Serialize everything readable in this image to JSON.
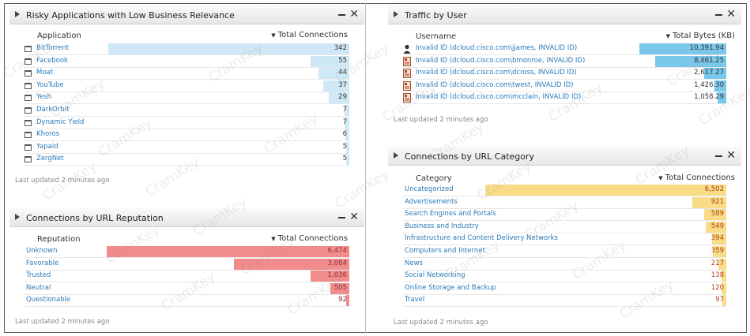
{
  "colors": {
    "risky_bar": "#cfe8f6",
    "reputation_bar": "#f28b8b",
    "traffic_bar": "#79c8ec",
    "category_bar": "#f8dc86"
  },
  "risky": {
    "title": "Risky Applications with Low Business Relevance",
    "col_left": "Application",
    "col_right": "Total Connections",
    "footer": "Last updated 2 minutes ago",
    "max": 342,
    "rows": [
      {
        "label": "BitTorrent",
        "value": 342
      },
      {
        "label": "Facebook",
        "value": 55
      },
      {
        "label": "Moat",
        "value": 44
      },
      {
        "label": "YouTube",
        "value": 37
      },
      {
        "label": "Yesh",
        "value": 29
      },
      {
        "label": "DarkOrbit",
        "value": 7
      },
      {
        "label": "Dynamic Yield",
        "value": 7
      },
      {
        "label": "Khoros",
        "value": 6
      },
      {
        "label": "Yapaid",
        "value": 5
      },
      {
        "label": "ZergNet",
        "value": 5
      }
    ]
  },
  "reputation": {
    "title": "Connections by URL Reputation",
    "col_left": "Reputation",
    "col_right": "Total Connections",
    "footer": "Last updated 2 minutes ago",
    "max": 6474,
    "rows": [
      {
        "label": "Unknown",
        "value": 6474,
        "text": "6,474"
      },
      {
        "label": "Favorable",
        "value": 3084,
        "text": "3,084"
      },
      {
        "label": "Trusted",
        "value": 1036,
        "text": "1,036"
      },
      {
        "label": "Neutral",
        "value": 505,
        "text": "505"
      },
      {
        "label": "Questionable",
        "value": 92,
        "text": "92"
      }
    ]
  },
  "traffic": {
    "title": "Traffic by User",
    "col_left": "Username",
    "col_right": "Total Bytes (KB)",
    "footer": "Last updated 2 minutes ago",
    "max": 10391.94,
    "rows": [
      {
        "label": "Invalid ID (dcloud.cisco.com\\jjames, INVALID ID)",
        "value": 10391.94,
        "text": "10,391.94"
      },
      {
        "label": "Invalid ID (dcloud.cisco.com\\bmonroe, INVALID ID)",
        "value": 8461.25,
        "text": "8,461.25"
      },
      {
        "label": "Invalid ID (dcloud.cisco.com\\dcross, INVALID ID)",
        "value": 2617.27,
        "text": "2,617.27"
      },
      {
        "label": "Invalid ID (dcloud.cisco.com\\twest, INVALID ID)",
        "value": 1426.3,
        "text": "1,426.30"
      },
      {
        "label": "Invalid ID (dcloud.cisco.com\\mcclain, INVALID ID)",
        "value": 1058.29,
        "text": "1,058.29"
      }
    ]
  },
  "category": {
    "title": "Connections by URL Category",
    "col_left": "Category",
    "col_right": "Total Connections",
    "footer": "Last updated 2 minutes ago",
    "max": 6502,
    "rows": [
      {
        "label": "Uncategorized",
        "value": 6502,
        "text": "6,502"
      },
      {
        "label": "Advertisements",
        "value": 921,
        "text": "921"
      },
      {
        "label": "Search Engines and Portals",
        "value": 589,
        "text": "589"
      },
      {
        "label": "Business and Industry",
        "value": 549,
        "text": "549"
      },
      {
        "label": "Infrastructure and Content Delivery Networks",
        "value": 394,
        "text": "394"
      },
      {
        "label": "Computers and Internet",
        "value": 359,
        "text": "359"
      },
      {
        "label": "News",
        "value": 217,
        "text": "217"
      },
      {
        "label": "Social Networking",
        "value": 138,
        "text": "138"
      },
      {
        "label": "Online Storage and Backup",
        "value": 120,
        "text": "120"
      },
      {
        "label": "Travel",
        "value": 97,
        "text": "97"
      }
    ]
  },
  "watermark": "CramKey"
}
